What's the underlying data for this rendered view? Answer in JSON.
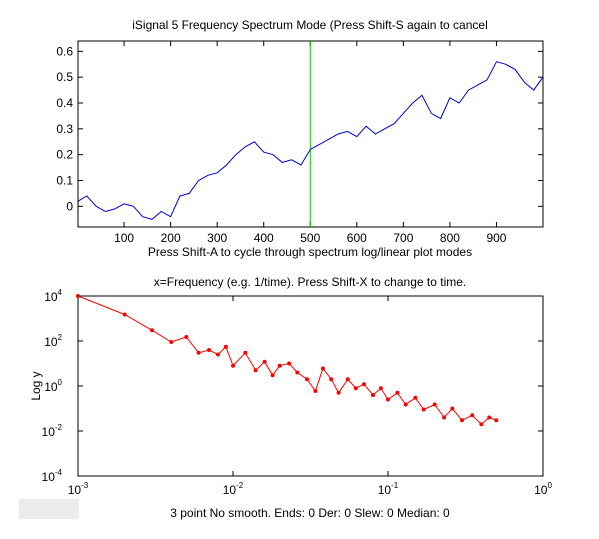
{
  "figure": {
    "top_title": "iSignal 5   Frequency Spectrum Mode (Press Shift-S again to cancel",
    "top_xlabel": "Press Shift-A to cycle through spectrum log/linear plot modes",
    "bottom_title": "x=Frequency (e.g. 1/time). Press Shift-X to change to time.",
    "bottom_ylabel": "Log y",
    "status_text": "3 point No smooth. Ends: 0    Der: 0    Slew: 0    Median: 0"
  },
  "colors": {
    "signal_line": "#0000cc",
    "cursor_line": "#00cc00",
    "spectrum_line": "#ff0000",
    "status_box": "#ececec"
  },
  "chart_data": [
    {
      "type": "line",
      "series_color": "#0000cc",
      "xlim": [
        1,
        1000
      ],
      "ylim": [
        -0.08,
        0.64
      ],
      "xticks": [
        100,
        200,
        300,
        400,
        500,
        600,
        700,
        800,
        900
      ],
      "yticks": [
        0,
        0.1,
        0.2,
        0.3,
        0.4,
        0.5,
        0.6
      ],
      "ytick_labels": [
        "0",
        "0.1",
        "0.2",
        "0.3",
        "0.4",
        "0.5",
        "0.6"
      ],
      "cursor_x": 500,
      "x": [
        1,
        20,
        40,
        60,
        80,
        100,
        120,
        140,
        160,
        180,
        200,
        220,
        240,
        260,
        280,
        300,
        320,
        340,
        360,
        380,
        400,
        420,
        440,
        460,
        480,
        500,
        520,
        540,
        560,
        580,
        600,
        620,
        640,
        660,
        680,
        700,
        720,
        740,
        760,
        780,
        800,
        820,
        840,
        860,
        880,
        900,
        920,
        940,
        960,
        980,
        1000
      ],
      "y": [
        0.02,
        0.04,
        0.0,
        -0.02,
        -0.01,
        0.01,
        0.0,
        -0.04,
        -0.05,
        -0.02,
        -0.04,
        0.04,
        0.05,
        0.1,
        0.12,
        0.13,
        0.16,
        0.2,
        0.23,
        0.25,
        0.21,
        0.2,
        0.17,
        0.18,
        0.16,
        0.22,
        0.24,
        0.26,
        0.28,
        0.29,
        0.27,
        0.31,
        0.28,
        0.3,
        0.32,
        0.36,
        0.4,
        0.43,
        0.36,
        0.34,
        0.42,
        0.4,
        0.45,
        0.47,
        0.49,
        0.56,
        0.55,
        0.53,
        0.48,
        0.45,
        0.5
      ]
    },
    {
      "type": "line",
      "series_color": "#ff0000",
      "xscale": "log",
      "yscale": "log",
      "xlim": [
        0.001,
        1
      ],
      "ylim": [
        0.0001,
        10000
      ],
      "xticks": [
        0.001,
        0.01,
        0.1,
        1
      ],
      "xtick_labels": [
        [
          "10",
          "-3"
        ],
        [
          "10",
          "-2"
        ],
        [
          "10",
          "-1"
        ],
        [
          "10",
          "0"
        ]
      ],
      "yticks": [
        10000,
        100,
        1,
        0.01,
        0.0001
      ],
      "ytick_labels": [
        [
          "10",
          "4"
        ],
        [
          "10",
          "2"
        ],
        [
          "10",
          "0"
        ],
        [
          "10",
          "-2"
        ],
        [
          "10",
          "-4"
        ]
      ],
      "x": [
        0.001,
        0.002,
        0.003,
        0.004,
        0.005,
        0.006,
        0.007,
        0.008,
        0.009,
        0.01,
        0.012,
        0.014,
        0.016,
        0.018,
        0.02,
        0.023,
        0.026,
        0.03,
        0.034,
        0.038,
        0.043,
        0.048,
        0.055,
        0.062,
        0.07,
        0.08,
        0.09,
        0.1,
        0.115,
        0.13,
        0.15,
        0.17,
        0.2,
        0.23,
        0.26,
        0.3,
        0.35,
        0.4,
        0.45,
        0.5
      ],
      "y": [
        10000,
        1500,
        300,
        90,
        150,
        30,
        40,
        25,
        55,
        8,
        30,
        5,
        12,
        3,
        8,
        10,
        4,
        2,
        0.6,
        6,
        2,
        0.5,
        2,
        0.8,
        1.2,
        0.4,
        0.8,
        0.25,
        0.5,
        0.15,
        0.3,
        0.09,
        0.15,
        0.04,
        0.1,
        0.03,
        0.05,
        0.02,
        0.04,
        0.03
      ]
    }
  ]
}
